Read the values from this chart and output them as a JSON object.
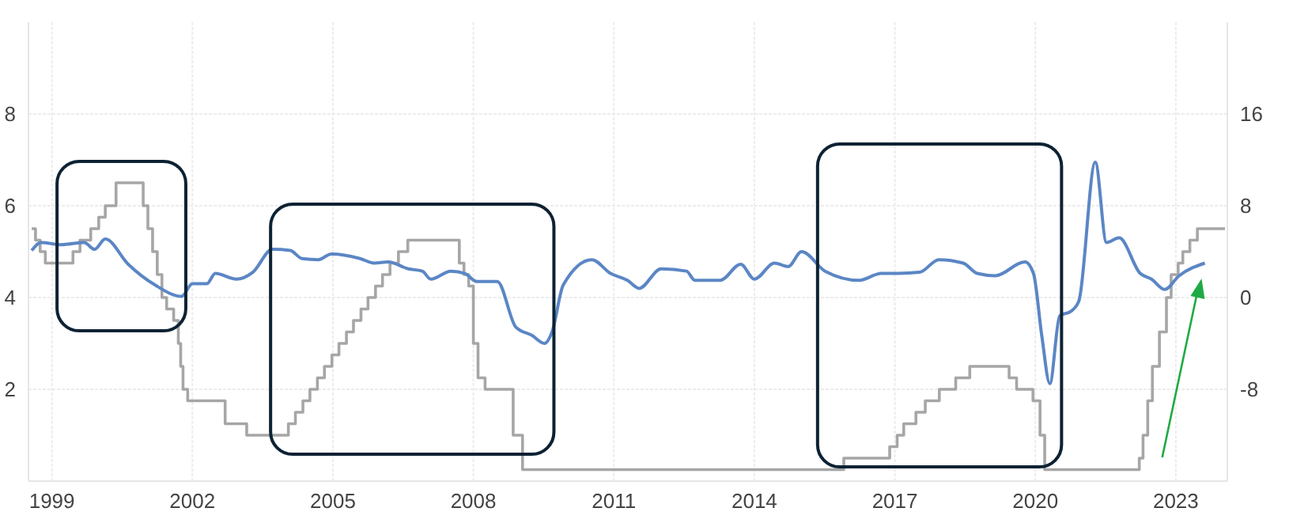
{
  "chart_data": {
    "type": "line",
    "xlim": [
      1998.5,
      2024.1
    ],
    "xticks": [
      1999,
      2002,
      2005,
      2008,
      2011,
      2014,
      2017,
      2020,
      2023
    ],
    "ylim": [
      0,
      10
    ],
    "yticks": [
      2,
      4,
      6,
      8
    ],
    "y2lim": [
      -16,
      24
    ],
    "y2ticks": [
      -8,
      0,
      8,
      16
    ],
    "grid": true,
    "series": [
      {
        "type": "step",
        "color": "#a6a6a6",
        "x": [
          1998.57,
          1998.65,
          1998.75,
          1998.86,
          1999.45,
          1999.6,
          1999.83,
          2000.0,
          2000.14,
          2000.37,
          2000.95,
          2001.05,
          2001.15,
          2001.25,
          2001.35,
          2001.45,
          2001.6,
          2001.7,
          2001.75,
          2001.8,
          2001.9,
          2002.7,
          2003.16,
          2004.05,
          2004.2,
          2004.36,
          2004.51,
          2004.67,
          2004.82,
          2004.98,
          2005.13,
          2005.29,
          2005.44,
          2005.6,
          2005.75,
          2005.91,
          2006.06,
          2006.22,
          2006.4,
          2006.6,
          2007.7,
          2007.8,
          2007.9,
          2008.0,
          2008.1,
          2008.25,
          2008.85,
          2009.05,
          2015.91,
          2016.89,
          2017.05,
          2017.19,
          2017.45,
          2017.65,
          2017.95,
          2018.3,
          2018.6,
          2019.44,
          2019.6,
          2019.95,
          2020.1,
          2020.2,
          2022.22,
          2022.3,
          2022.4,
          2022.5,
          2022.65,
          2022.8,
          2022.9,
          2023.05,
          2023.15,
          2023.3,
          2023.46,
          2024.05
        ],
        "values": [
          5.5,
          5.25,
          5.0,
          4.75,
          5.0,
          5.25,
          5.5,
          5.75,
          6.0,
          6.5,
          6.0,
          5.5,
          5.0,
          4.5,
          4.0,
          3.75,
          3.5,
          3.0,
          2.5,
          2.0,
          1.75,
          1.25,
          1.0,
          1.25,
          1.5,
          1.75,
          2.0,
          2.25,
          2.5,
          2.75,
          3.0,
          3.25,
          3.5,
          3.75,
          4.0,
          4.25,
          4.5,
          4.75,
          5.0,
          5.25,
          4.75,
          4.5,
          4.25,
          3.0,
          2.25,
          2.0,
          1.0,
          0.25,
          0.5,
          0.75,
          1.0,
          1.25,
          1.5,
          1.75,
          2.0,
          2.25,
          2.5,
          2.25,
          2.0,
          1.75,
          1.0,
          0.25,
          0.5,
          1.0,
          1.75,
          2.5,
          3.25,
          4.0,
          4.5,
          4.75,
          5.0,
          5.25,
          5.5,
          5.5
        ]
      },
      {
        "axis": "y2",
        "color": "#5b86c5",
        "x": [
          1998.57,
          1998.77,
          1999.2,
          1999.69,
          1999.91,
          2000.14,
          2000.63,
          2001.2,
          2001.77,
          2002.0,
          2002.31,
          2002.49,
          2002.94,
          2003.29,
          2003.71,
          2004.09,
          2004.34,
          2004.69,
          2004.97,
          2005.58,
          2005.88,
          2006.18,
          2006.61,
          2006.91,
          2007.09,
          2007.52,
          2007.82,
          2008.07,
          2008.51,
          2008.91,
          2009.25,
          2009.52,
          2009.68,
          2009.92,
          2010.53,
          2010.93,
          2011.29,
          2011.54,
          2012.01,
          2012.55,
          2012.73,
          2013.27,
          2013.71,
          2014.0,
          2014.43,
          2014.72,
          2015.01,
          2015.51,
          2016.24,
          2016.71,
          2017.08,
          2017.53,
          2017.94,
          2018.46,
          2018.76,
          2019.14,
          2019.78,
          2019.96,
          2020.14,
          2020.31,
          2020.52,
          2020.76,
          2020.93,
          2021.28,
          2021.52,
          2021.79,
          2022.24,
          2022.48,
          2022.76,
          2023.07,
          2023.62
        ],
        "values": [
          4.1,
          4.8,
          4.6,
          4.8,
          4.2,
          5.1,
          2.9,
          1.1,
          0.1,
          1.2,
          1.2,
          2.1,
          1.6,
          2.2,
          4.2,
          4.1,
          3.4,
          3.3,
          3.8,
          3.4,
          3.0,
          3.1,
          2.5,
          2.3,
          1.6,
          2.3,
          2.1,
          1.4,
          1.4,
          -2.6,
          -3.3,
          -4.0,
          -3.0,
          1.1,
          3.3,
          2.1,
          1.5,
          0.8,
          2.5,
          2.3,
          1.5,
          1.5,
          2.9,
          1.6,
          3.0,
          2.7,
          4.0,
          2.3,
          1.5,
          2.1,
          2.1,
          2.2,
          3.3,
          3.0,
          2.1,
          1.9,
          3.1,
          2.1,
          -3.4,
          -7.5,
          -1.6,
          -1.2,
          -0.3,
          11.8,
          4.8,
          5.2,
          2.1,
          1.6,
          0.7,
          1.9,
          3.0
        ]
      }
    ]
  }
}
